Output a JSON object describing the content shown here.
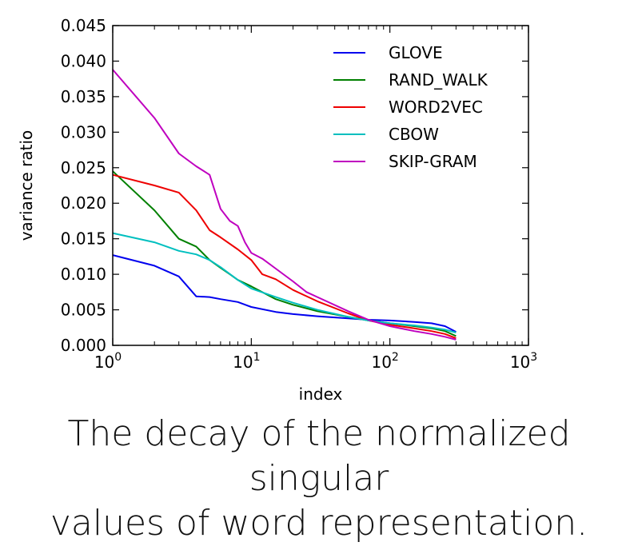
{
  "chart_data": {
    "type": "line",
    "xlabel": "index",
    "ylabel": "variance ratio",
    "xscale": "log",
    "xlim": [
      1,
      1000
    ],
    "ylim": [
      0,
      0.045
    ],
    "x_ticks": [
      {
        "value": 1,
        "base": "10",
        "exp": "0"
      },
      {
        "value": 10,
        "base": "10",
        "exp": "1"
      },
      {
        "value": 100,
        "base": "10",
        "exp": "2"
      },
      {
        "value": 1000,
        "base": "10",
        "exp": "3"
      }
    ],
    "y_ticks": [
      "0.000",
      "0.005",
      "0.010",
      "0.015",
      "0.020",
      "0.025",
      "0.030",
      "0.035",
      "0.040",
      "0.045"
    ],
    "grid": false,
    "legend_position": "top-right",
    "series": [
      {
        "name": "GLOVE",
        "color": "#0000ee",
        "x": [
          1,
          2,
          3,
          4,
          5,
          6,
          8,
          10,
          15,
          20,
          30,
          50,
          70,
          100,
          150,
          200,
          250,
          300
        ],
        "y": [
          0.0127,
          0.0112,
          0.0097,
          0.0069,
          0.0068,
          0.0065,
          0.0061,
          0.0054,
          0.0047,
          0.0044,
          0.0041,
          0.0038,
          0.0036,
          0.0035,
          0.0033,
          0.0031,
          0.0027,
          0.0019
        ]
      },
      {
        "name": "RAND_WALK",
        "color": "#008000",
        "x": [
          1,
          2,
          3,
          4,
          5,
          6,
          7,
          8,
          10,
          15,
          20,
          30,
          50,
          70,
          100,
          150,
          200,
          250,
          300
        ],
        "y": [
          0.0245,
          0.019,
          0.015,
          0.0139,
          0.012,
          0.0109,
          0.01,
          0.0092,
          0.0083,
          0.0065,
          0.0057,
          0.0048,
          0.004,
          0.0035,
          0.0031,
          0.0027,
          0.0024,
          0.002,
          0.0013
        ]
      },
      {
        "name": "WORD2VEC",
        "color": "#ee0000",
        "x": [
          1,
          2,
          3,
          4,
          5,
          6,
          8,
          10,
          12,
          15,
          20,
          30,
          50,
          70,
          100,
          150,
          200,
          250,
          300
        ],
        "y": [
          0.024,
          0.0225,
          0.0215,
          0.019,
          0.0162,
          0.0152,
          0.0135,
          0.012,
          0.01,
          0.0093,
          0.0078,
          0.0062,
          0.0045,
          0.0035,
          0.0029,
          0.0024,
          0.002,
          0.0016,
          0.001
        ]
      },
      {
        "name": "CBOW",
        "color": "#00bfbf",
        "x": [
          1,
          2,
          3,
          4,
          5,
          6,
          8,
          10,
          15,
          20,
          30,
          50,
          70,
          100,
          150,
          200,
          250,
          300
        ],
        "y": [
          0.0158,
          0.0145,
          0.0133,
          0.0128,
          0.012,
          0.011,
          0.0092,
          0.008,
          0.0068,
          0.006,
          0.005,
          0.004,
          0.0035,
          0.0031,
          0.0028,
          0.0025,
          0.0022,
          0.0018
        ]
      },
      {
        "name": "SKIP-GRAM",
        "color": "#bf00bf",
        "x": [
          1,
          2,
          3,
          4,
          5,
          6,
          7,
          8,
          9,
          10,
          12,
          15,
          20,
          25,
          30,
          50,
          70,
          100,
          150,
          200,
          250,
          300
        ],
        "y": [
          0.0388,
          0.032,
          0.027,
          0.0252,
          0.024,
          0.0192,
          0.0175,
          0.0168,
          0.0145,
          0.013,
          0.0122,
          0.0108,
          0.009,
          0.0075,
          0.0068,
          0.0048,
          0.0036,
          0.0027,
          0.002,
          0.0016,
          0.0012,
          0.0008
        ]
      }
    ]
  },
  "caption": {
    "line1": "The decay of the normalized singular",
    "line2": "values of word representation."
  }
}
